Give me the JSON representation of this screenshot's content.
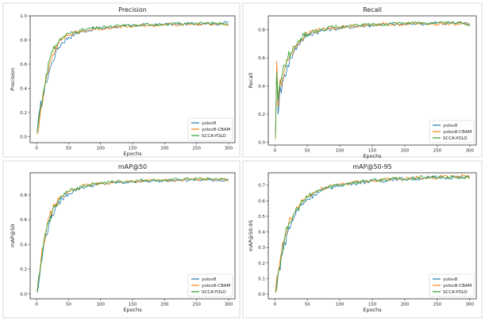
{
  "chart_data": [
    {
      "type": "line",
      "title": "Precision",
      "xlabel": "Epochs",
      "ylabel": "Precision",
      "xlim": [
        -10,
        310
      ],
      "ylim": [
        -0.05,
        1.0
      ],
      "xticks": [
        0,
        50,
        100,
        150,
        200,
        250,
        300
      ],
      "yticks": [
        0.0,
        0.2,
        0.4,
        0.6,
        0.8,
        1.0
      ],
      "ytick_labels": [
        "0.0",
        "0.2",
        "0.4",
        "0.6",
        "0.8",
        "1.0"
      ],
      "grid": false,
      "legend": "bottom-right",
      "x": [
        1,
        5,
        10,
        15,
        20,
        25,
        30,
        35,
        40,
        45,
        50,
        60,
        70,
        80,
        90,
        100,
        110,
        120,
        130,
        140,
        150,
        160,
        170,
        180,
        190,
        200,
        210,
        220,
        230,
        240,
        250,
        260,
        270,
        280,
        290,
        300
      ],
      "series": [
        {
          "name": "yolov8",
          "color": "#1f77b4",
          "values": [
            0.03,
            0.22,
            0.32,
            0.45,
            0.55,
            0.62,
            0.7,
            0.74,
            0.78,
            0.8,
            0.82,
            0.85,
            0.87,
            0.88,
            0.89,
            0.9,
            0.9,
            0.91,
            0.91,
            0.92,
            0.92,
            0.92,
            0.93,
            0.92,
            0.93,
            0.93,
            0.93,
            0.93,
            0.93,
            0.94,
            0.93,
            0.94,
            0.94,
            0.93,
            0.94,
            0.95
          ]
        },
        {
          "name": "yolov8-CBAM",
          "color": "#ff7f0e",
          "values": [
            0.02,
            0.15,
            0.3,
            0.48,
            0.6,
            0.68,
            0.74,
            0.78,
            0.81,
            0.83,
            0.84,
            0.86,
            0.87,
            0.88,
            0.89,
            0.89,
            0.9,
            0.9,
            0.91,
            0.91,
            0.91,
            0.92,
            0.92,
            0.92,
            0.92,
            0.93,
            0.93,
            0.92,
            0.93,
            0.93,
            0.93,
            0.93,
            0.93,
            0.94,
            0.93,
            0.92
          ]
        },
        {
          "name": "SCCA-YOLO",
          "color": "#2ca02c",
          "values": [
            0.04,
            0.2,
            0.35,
            0.52,
            0.63,
            0.7,
            0.76,
            0.79,
            0.82,
            0.84,
            0.85,
            0.87,
            0.88,
            0.89,
            0.9,
            0.9,
            0.91,
            0.91,
            0.92,
            0.92,
            0.92,
            0.92,
            0.93,
            0.93,
            0.93,
            0.93,
            0.93,
            0.94,
            0.93,
            0.94,
            0.94,
            0.94,
            0.94,
            0.94,
            0.94,
            0.93
          ]
        }
      ]
    },
    {
      "type": "line",
      "title": "Recall",
      "xlabel": "Epochs",
      "ylabel": "Recall",
      "xlim": [
        -10,
        310
      ],
      "ylim": [
        -0.02,
        0.9
      ],
      "xticks": [
        0,
        50,
        100,
        150,
        200,
        250,
        300
      ],
      "yticks": [
        0.0,
        0.2,
        0.4,
        0.6,
        0.8
      ],
      "ytick_labels": [
        "0.0",
        "0.2",
        "0.4",
        "0.6",
        "0.8"
      ],
      "grid": false,
      "legend": "bottom-right",
      "x": [
        1,
        3,
        5,
        8,
        10,
        15,
        20,
        25,
        30,
        35,
        40,
        45,
        50,
        60,
        70,
        80,
        90,
        100,
        110,
        120,
        130,
        140,
        150,
        160,
        170,
        180,
        190,
        200,
        210,
        220,
        230,
        240,
        250,
        260,
        270,
        280,
        290,
        300
      ],
      "series": [
        {
          "name": "yolov8",
          "color": "#1f77b4",
          "values": [
            0.05,
            0.55,
            0.2,
            0.4,
            0.35,
            0.48,
            0.55,
            0.6,
            0.65,
            0.69,
            0.72,
            0.74,
            0.76,
            0.78,
            0.79,
            0.8,
            0.81,
            0.81,
            0.82,
            0.82,
            0.83,
            0.83,
            0.83,
            0.84,
            0.84,
            0.84,
            0.84,
            0.84,
            0.84,
            0.85,
            0.84,
            0.85,
            0.85,
            0.84,
            0.85,
            0.85,
            0.85,
            0.84
          ]
        },
        {
          "name": "yolov8-CBAM",
          "color": "#ff7f0e",
          "values": [
            0.02,
            0.58,
            0.25,
            0.45,
            0.4,
            0.52,
            0.58,
            0.63,
            0.67,
            0.7,
            0.73,
            0.75,
            0.77,
            0.79,
            0.8,
            0.81,
            0.81,
            0.82,
            0.82,
            0.83,
            0.83,
            0.83,
            0.84,
            0.84,
            0.84,
            0.84,
            0.84,
            0.84,
            0.85,
            0.84,
            0.85,
            0.84,
            0.84,
            0.85,
            0.84,
            0.84,
            0.85,
            0.84
          ]
        },
        {
          "name": "SCCA-YOLO",
          "color": "#2ca02c",
          "values": [
            0.03,
            0.5,
            0.3,
            0.42,
            0.45,
            0.55,
            0.6,
            0.64,
            0.68,
            0.71,
            0.74,
            0.76,
            0.77,
            0.79,
            0.8,
            0.81,
            0.82,
            0.82,
            0.83,
            0.83,
            0.83,
            0.84,
            0.84,
            0.84,
            0.84,
            0.85,
            0.85,
            0.85,
            0.85,
            0.85,
            0.85,
            0.85,
            0.85,
            0.85,
            0.85,
            0.85,
            0.85,
            0.83
          ]
        }
      ]
    },
    {
      "type": "line",
      "title": "mAP@50",
      "xlabel": "Epochs",
      "ylabel": "mAP@50",
      "xlim": [
        -10,
        310
      ],
      "ylim": [
        -0.04,
        0.98
      ],
      "xticks": [
        0,
        50,
        100,
        150,
        200,
        250,
        300
      ],
      "yticks": [
        0.0,
        0.2,
        0.4,
        0.6,
        0.8
      ],
      "ytick_labels": [
        "0.0",
        "0.2",
        "0.4",
        "0.6",
        "0.8"
      ],
      "grid": false,
      "legend": "bottom-right",
      "x": [
        1,
        5,
        10,
        15,
        20,
        25,
        30,
        35,
        40,
        45,
        50,
        60,
        70,
        80,
        90,
        100,
        110,
        120,
        130,
        140,
        150,
        160,
        170,
        180,
        190,
        200,
        210,
        220,
        230,
        240,
        250,
        260,
        270,
        280,
        290,
        300
      ],
      "series": [
        {
          "name": "yolov8",
          "color": "#1f77b4",
          "values": [
            0.01,
            0.15,
            0.35,
            0.48,
            0.58,
            0.64,
            0.7,
            0.74,
            0.77,
            0.79,
            0.81,
            0.84,
            0.86,
            0.87,
            0.88,
            0.89,
            0.89,
            0.9,
            0.9,
            0.9,
            0.91,
            0.91,
            0.91,
            0.91,
            0.91,
            0.92,
            0.92,
            0.92,
            0.92,
            0.92,
            0.92,
            0.92,
            0.92,
            0.92,
            0.92,
            0.92
          ]
        },
        {
          "name": "yolov8-CBAM",
          "color": "#ff7f0e",
          "values": [
            0.02,
            0.18,
            0.38,
            0.52,
            0.62,
            0.68,
            0.73,
            0.76,
            0.79,
            0.81,
            0.83,
            0.85,
            0.87,
            0.88,
            0.89,
            0.89,
            0.9,
            0.9,
            0.91,
            0.91,
            0.91,
            0.91,
            0.92,
            0.92,
            0.92,
            0.92,
            0.92,
            0.92,
            0.92,
            0.93,
            0.92,
            0.93,
            0.93,
            0.93,
            0.93,
            0.92
          ]
        },
        {
          "name": "SCCA-YOLO",
          "color": "#2ca02c",
          "values": [
            0.01,
            0.17,
            0.37,
            0.5,
            0.6,
            0.67,
            0.72,
            0.76,
            0.79,
            0.81,
            0.83,
            0.85,
            0.87,
            0.88,
            0.89,
            0.9,
            0.9,
            0.91,
            0.91,
            0.91,
            0.91,
            0.92,
            0.92,
            0.92,
            0.92,
            0.92,
            0.92,
            0.93,
            0.93,
            0.93,
            0.93,
            0.93,
            0.93,
            0.93,
            0.93,
            0.92
          ]
        }
      ]
    },
    {
      "type": "line",
      "title": "mAP@50-95",
      "xlabel": "Epochs",
      "ylabel": "mAP@50-95",
      "xlim": [
        -10,
        310
      ],
      "ylim": [
        -0.03,
        0.78
      ],
      "xticks": [
        0,
        50,
        100,
        150,
        200,
        250,
        300
      ],
      "yticks": [
        0.0,
        0.1,
        0.2,
        0.3,
        0.4,
        0.5,
        0.6,
        0.7
      ],
      "ytick_labels": [
        "0.0",
        "0.1",
        "0.2",
        "0.3",
        "0.4",
        "0.5",
        "0.6",
        "0.7"
      ],
      "grid": false,
      "legend": "bottom-right",
      "x": [
        1,
        5,
        10,
        15,
        20,
        25,
        30,
        35,
        40,
        45,
        50,
        60,
        70,
        80,
        90,
        100,
        110,
        120,
        130,
        140,
        150,
        160,
        170,
        180,
        190,
        200,
        210,
        220,
        230,
        240,
        250,
        260,
        270,
        280,
        290,
        300
      ],
      "series": [
        {
          "name": "yolov8",
          "color": "#1f77b4",
          "values": [
            0.01,
            0.12,
            0.24,
            0.33,
            0.4,
            0.45,
            0.5,
            0.54,
            0.57,
            0.59,
            0.61,
            0.64,
            0.66,
            0.68,
            0.69,
            0.7,
            0.71,
            0.71,
            0.72,
            0.72,
            0.73,
            0.73,
            0.73,
            0.74,
            0.74,
            0.74,
            0.74,
            0.74,
            0.75,
            0.75,
            0.75,
            0.75,
            0.75,
            0.75,
            0.75,
            0.75
          ]
        },
        {
          "name": "yolov8-CBAM",
          "color": "#ff7f0e",
          "values": [
            0.01,
            0.13,
            0.26,
            0.36,
            0.43,
            0.48,
            0.52,
            0.56,
            0.59,
            0.61,
            0.63,
            0.65,
            0.67,
            0.69,
            0.7,
            0.71,
            0.71,
            0.72,
            0.72,
            0.73,
            0.73,
            0.73,
            0.74,
            0.74,
            0.74,
            0.74,
            0.75,
            0.75,
            0.75,
            0.75,
            0.75,
            0.76,
            0.75,
            0.76,
            0.76,
            0.75
          ]
        },
        {
          "name": "SCCA-YOLO",
          "color": "#2ca02c",
          "values": [
            0.01,
            0.13,
            0.25,
            0.35,
            0.42,
            0.47,
            0.52,
            0.55,
            0.58,
            0.6,
            0.62,
            0.65,
            0.67,
            0.68,
            0.7,
            0.7,
            0.71,
            0.72,
            0.72,
            0.73,
            0.73,
            0.73,
            0.74,
            0.74,
            0.74,
            0.74,
            0.74,
            0.75,
            0.75,
            0.75,
            0.75,
            0.75,
            0.75,
            0.75,
            0.75,
            0.75
          ]
        }
      ]
    }
  ]
}
